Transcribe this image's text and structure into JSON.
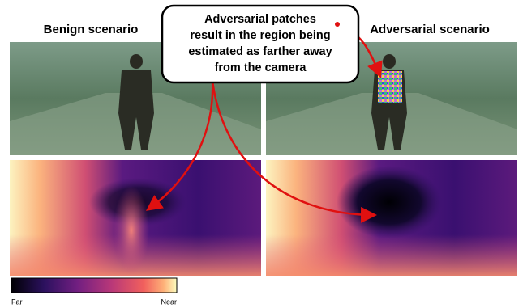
{
  "labels": {
    "benign": "Benign scenario",
    "adversarial": "Adversarial scenario"
  },
  "callout": {
    "lines": [
      "Adversarial patches",
      "result in the region being",
      "estimated as farther away",
      "from the camera"
    ]
  },
  "colorbar": {
    "far": "Far",
    "near": "Near"
  }
}
